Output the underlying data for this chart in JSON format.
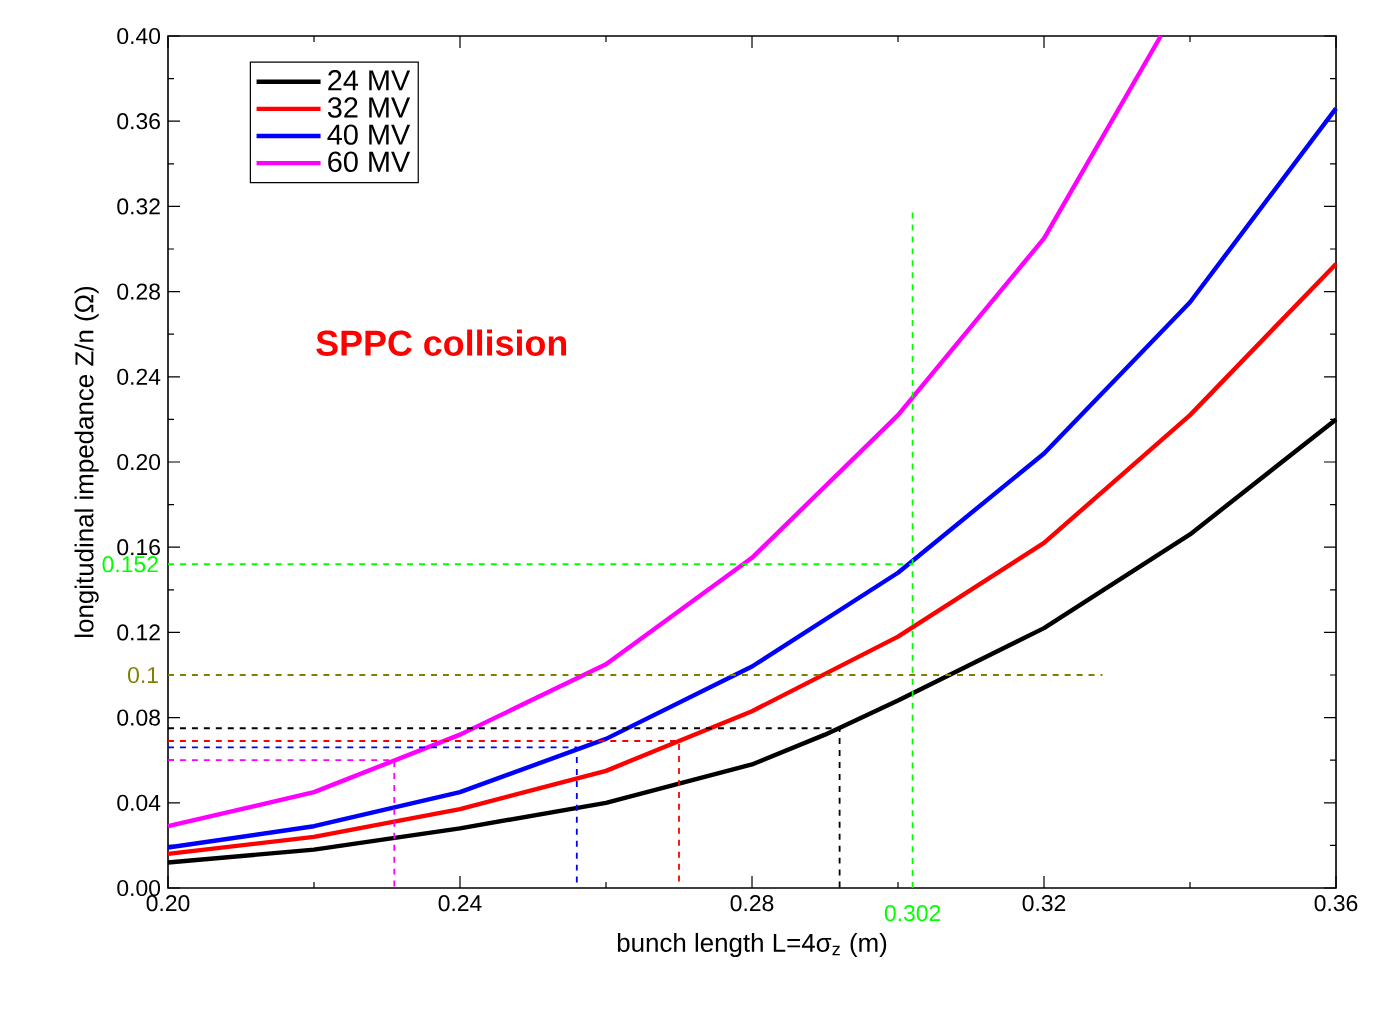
{
  "chart_data": {
    "type": "line",
    "title": "SPPC collision",
    "xlabel": "bunch length L=4σ$_{z}$ (m)",
    "ylabel": "longitudinal impedance Z/n (Ω)",
    "xlim": [
      0.2,
      0.36
    ],
    "ylim": [
      0,
      0.4
    ],
    "xticks": [
      {
        "value": 0.2,
        "label": "0.20"
      },
      {
        "value": 0.24,
        "label": "0.24"
      },
      {
        "value": 0.28,
        "label": "0.28"
      },
      {
        "value": 0.32,
        "label": "0.32"
      },
      {
        "value": 0.36,
        "label": "0.36"
      }
    ],
    "yticks": [
      {
        "value": 0,
        "label": "0.00"
      },
      {
        "value": 0.04,
        "label": "0.04"
      },
      {
        "value": 0.08,
        "label": "0.08"
      },
      {
        "value": 0.12,
        "label": "0.12"
      },
      {
        "value": 0.16,
        "label": "0.16"
      },
      {
        "value": 0.2,
        "label": "0.20"
      },
      {
        "value": 0.24,
        "label": "0.24"
      },
      {
        "value": 0.28,
        "label": "0.28"
      },
      {
        "value": 0.32,
        "label": "0.32"
      },
      {
        "value": 0.36,
        "label": "0.36"
      },
      {
        "value": 0.4,
        "label": "0.40"
      }
    ],
    "grid": false,
    "legend": "top left",
    "marker": "none",
    "series": [
      {
        "name": "24 MV",
        "color": "#000000",
        "line_style": "solid",
        "x": [
          0.2,
          0.22,
          0.24,
          0.26,
          0.28,
          0.29,
          0.3,
          0.32,
          0.34,
          0.36
        ],
        "values": [
          0.012,
          0.018,
          0.028,
          0.04,
          0.058,
          0.072,
          0.088,
          0.122,
          0.166,
          0.22
        ]
      },
      {
        "name": "32 MV",
        "color": "#ff0000",
        "line_style": "solid",
        "x": [
          0.2,
          0.22,
          0.24,
          0.26,
          0.27,
          0.28,
          0.3,
          0.32,
          0.34,
          0.36
        ],
        "values": [
          0.016,
          0.024,
          0.037,
          0.055,
          0.069,
          0.083,
          0.118,
          0.162,
          0.222,
          0.293
        ]
      },
      {
        "name": "40 MV",
        "color": "#0000ff",
        "line_style": "solid",
        "x": [
          0.2,
          0.22,
          0.24,
          0.26,
          0.28,
          0.3,
          0.32,
          0.34,
          0.36
        ],
        "values": [
          0.019,
          0.029,
          0.045,
          0.07,
          0.104,
          0.148,
          0.204,
          0.275,
          0.366
        ]
      },
      {
        "name": "60 MV",
        "color": "#ff00ff",
        "line_style": "solid",
        "x": [
          0.2,
          0.22,
          0.24,
          0.26,
          0.28,
          0.3,
          0.32,
          0.336
        ],
        "values": [
          0.029,
          0.045,
          0.072,
          0.105,
          0.155,
          0.222,
          0.305,
          0.4
        ]
      },
      {
        "color": "#000000",
        "line_style": "dashed",
        "x": [
          0.2,
          0.292,
          0.292
        ],
        "values": [
          0.075,
          0.075,
          0
        ]
      },
      {
        "color": "#ff0000",
        "line_style": "dashed",
        "x": [
          0.2,
          0.27,
          0.27
        ],
        "values": [
          0.069,
          0.069,
          0
        ]
      },
      {
        "color": "#0000ff",
        "line_style": "dashed",
        "x": [
          0.2,
          0.256,
          0.256
        ],
        "values": [
          0.066,
          0.066,
          0
        ]
      },
      {
        "color": "#ff00ff",
        "line_style": "dashed",
        "x": [
          0.2,
          0.231,
          0.231
        ],
        "values": [
          0.06,
          0.06,
          0
        ]
      },
      {
        "color": "#808000",
        "line_style": "dashed",
        "x": [
          0.2,
          0.328
        ],
        "values": [
          0.1,
          0.1
        ],
        "value_labels": [
          "0.1",
          null
        ]
      },
      {
        "color": "#00ff00",
        "line_style": "dashed",
        "x": [
          0.2,
          0.302
        ],
        "values": [
          0.152,
          0.152
        ],
        "value_labels": [
          "0.152",
          null
        ]
      },
      {
        "color": "#00ff00",
        "line_style": "dashed",
        "x": [
          0.302,
          0.302
        ],
        "values": [
          0,
          0.32
        ]
      }
    ],
    "annotations": [
      {
        "text": "0.302",
        "x": 0.302,
        "y": 0
      }
    ]
  }
}
